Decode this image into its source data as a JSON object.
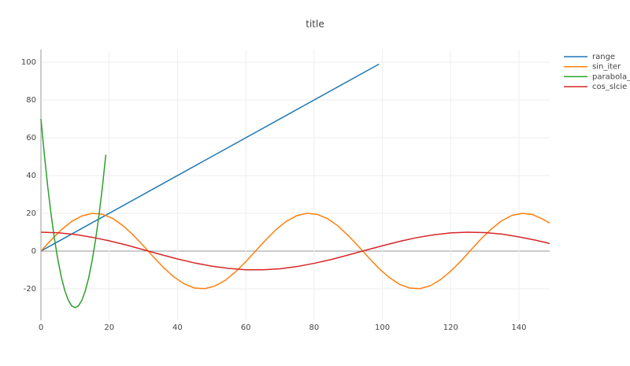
{
  "chart_data": {
    "type": "line",
    "title": "title",
    "xlim": [
      0,
      149
    ],
    "ylim": [
      -36.7,
      106.7
    ],
    "xticks": [
      0,
      20,
      40,
      60,
      80,
      100,
      120,
      140
    ],
    "yticks": [
      -20,
      0,
      20,
      40,
      60,
      80,
      100
    ],
    "grid": true,
    "legend": "right",
    "series": [
      {
        "name": "range",
        "color": "#1f77b4",
        "x": [
          0,
          99
        ],
        "values": [
          0,
          99
        ]
      },
      {
        "name": "sin_iter",
        "color": "#ff7f0e",
        "x": [
          0,
          3,
          6,
          9,
          12,
          15,
          18,
          21,
          24,
          27,
          30,
          33,
          36,
          39,
          42,
          45,
          48,
          51,
          54,
          57,
          60,
          63,
          66,
          69,
          72,
          75,
          78,
          81,
          84,
          87,
          90,
          93,
          96,
          99,
          102,
          105,
          108,
          111,
          114,
          117,
          120,
          123,
          126,
          129,
          132,
          135,
          138,
          141,
          144,
          147,
          149
        ],
        "values": [
          0,
          5.9,
          11.3,
          15.7,
          18.6,
          20.0,
          19.5,
          17.3,
          13.5,
          8.5,
          2.8,
          -3.2,
          -8.9,
          -13.8,
          -17.4,
          -19.6,
          -19.9,
          -18.5,
          -15.5,
          -11.0,
          -5.6,
          0.3,
          6.2,
          11.6,
          15.9,
          18.8,
          20.0,
          19.4,
          17.1,
          13.3,
          8.2,
          2.5,
          -3.5,
          -9.2,
          -14.0,
          -17.6,
          -19.6,
          -19.9,
          -18.4,
          -15.2,
          -10.7,
          -5.3,
          0.7,
          6.6,
          11.8,
          16.1,
          18.9,
          20.0,
          19.3,
          16.9,
          14.8
        ]
      },
      {
        "name": "parabola_vec",
        "color": "#2ca02c",
        "x": [
          0,
          1,
          2,
          3,
          4,
          5,
          6,
          7,
          8,
          9,
          10,
          11,
          12,
          13,
          14,
          15,
          16,
          17,
          18,
          19
        ],
        "values": [
          70,
          51,
          34,
          19,
          6,
          -5,
          -14,
          -21,
          -26,
          -29,
          -30,
          -29,
          -26,
          -21,
          -14,
          -5,
          6,
          19,
          34,
          51
        ]
      },
      {
        "name": "cos_slcie",
        "color": "#d62728",
        "x": [
          0,
          5,
          10,
          15,
          20,
          25,
          30,
          35,
          40,
          45,
          50,
          55,
          60,
          65,
          70,
          75,
          80,
          85,
          90,
          95,
          100,
          105,
          110,
          115,
          120,
          125,
          130,
          135,
          140,
          145,
          149
        ],
        "values": [
          10,
          9.7,
          8.8,
          7.3,
          5.4,
          3.2,
          0.7,
          -1.8,
          -4.2,
          -6.3,
          -8.0,
          -9.2,
          -9.9,
          -9.9,
          -9.4,
          -8.2,
          -6.5,
          -4.5,
          -2.1,
          0.4,
          2.8,
          5.1,
          7.1,
          8.6,
          9.6,
          10.0,
          9.8,
          9.0,
          7.5,
          5.7,
          4.0
        ]
      }
    ]
  }
}
